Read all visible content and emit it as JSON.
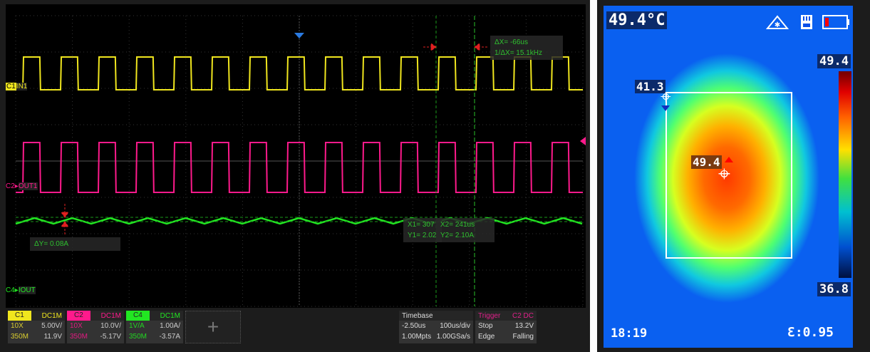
{
  "scope": {
    "channels": [
      {
        "tag": "C1",
        "coupling": "DC1M",
        "probe": "10X",
        "scale": "5.00V/",
        "bw": "350M",
        "offset": "11.9V",
        "color": "#f0e61e",
        "trace_label": "IN1"
      },
      {
        "tag": "C2",
        "coupling": "DC1M",
        "probe": "10X",
        "scale": "10.0V/",
        "bw": "350M",
        "offset": "-5.17V",
        "color": "#ff1a8c",
        "trace_label": "OUT1"
      },
      {
        "tag": "C4",
        "coupling": "DC1M",
        "probe": "1V/A",
        "scale": "1.00A/",
        "bw": "350M",
        "offset": "-3.57A",
        "color": "#22e622",
        "trace_label": "IOUT"
      }
    ],
    "trace_markers": [
      "C1",
      "C2",
      "C4"
    ],
    "cursor_x": {
      "dx": "ΔX= -66us",
      "inv_dx": "1/ΔX= 15.1kHz"
    },
    "cursor_y": {
      "dy": "ΔY= 0.08A"
    },
    "cursor1": {
      "x": "X1= 307",
      "y": "Y1= 2.02"
    },
    "cursor2": {
      "x": "X2= 241us",
      "y": "Y2= 2.10A"
    },
    "timebase": {
      "title": "Timebase",
      "delay": "-2.50us",
      "scale": "100us/div",
      "points": "1.00Mpts",
      "rate": "1.00GSa/s"
    },
    "trigger": {
      "title": "Trigger",
      "source": "C2 DC",
      "state": "Stop",
      "level": "13.2V",
      "type": "Edge",
      "slope": "Falling"
    }
  },
  "thermal": {
    "center_temp": "49.4°C",
    "scale_max": "49.4",
    "scale_min": "36.8",
    "min_spot": "41.3",
    "max_spot": "49.4",
    "time": "18:19",
    "emissivity": "Ɛ:0.95",
    "icons": [
      "laser-icon",
      "sd-card-icon",
      "battery-low-icon"
    ]
  }
}
